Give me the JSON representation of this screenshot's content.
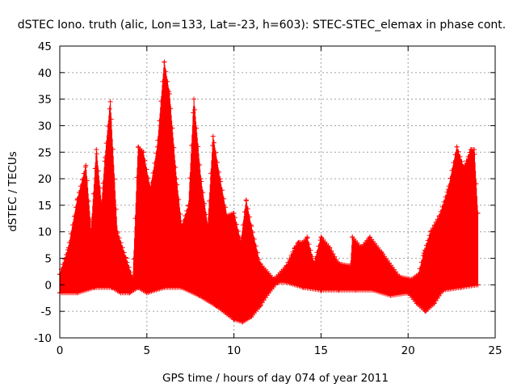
{
  "chart_data": {
    "type": "line",
    "title": "dSTEC Iono. truth (alic, Lon=133, Lat=-23, h=603): STEC-STEC_elemax in phase cont.",
    "xlabel": "GPS time / hours of day 074 of year 2011",
    "ylabel": "dSTEC  / TECUs",
    "xlim": [
      0,
      25
    ],
    "ylim": [
      -10,
      45
    ],
    "xticks": [
      0,
      5,
      10,
      15,
      20,
      25
    ],
    "yticks": [
      -10,
      -5,
      0,
      5,
      10,
      15,
      20,
      25,
      30,
      35,
      40,
      45
    ],
    "grid": true,
    "marker": "plus",
    "color": "#ff0000",
    "upper_envelope": [
      [
        0.0,
        2.0
      ],
      [
        0.5,
        7.0
      ],
      [
        1.0,
        16.0
      ],
      [
        1.5,
        22.5
      ],
      [
        1.8,
        10.0
      ],
      [
        2.1,
        25.5
      ],
      [
        2.4,
        15.0
      ],
      [
        2.6,
        24.0
      ],
      [
        2.9,
        34.5
      ],
      [
        3.3,
        10.0
      ],
      [
        3.8,
        5.0
      ],
      [
        4.2,
        1.0
      ],
      [
        4.5,
        26.0
      ],
      [
        4.8,
        25.0
      ],
      [
        5.2,
        18.0
      ],
      [
        5.6,
        26.0
      ],
      [
        6.0,
        42.0
      ],
      [
        6.3,
        36.0
      ],
      [
        6.7,
        20.0
      ],
      [
        7.0,
        11.0
      ],
      [
        7.4,
        15.0
      ],
      [
        7.7,
        35.0
      ],
      [
        8.1,
        20.0
      ],
      [
        8.5,
        11.0
      ],
      [
        8.8,
        28.0
      ],
      [
        9.2,
        20.0
      ],
      [
        9.6,
        13.0
      ],
      [
        10.0,
        13.5
      ],
      [
        10.4,
        8.0
      ],
      [
        10.7,
        16.0
      ],
      [
        11.0,
        11.0
      ],
      [
        11.5,
        4.0
      ],
      [
        12.3,
        1.0
      ],
      [
        13.0,
        3.5
      ],
      [
        13.5,
        7.0
      ],
      [
        13.7,
        8.0
      ],
      [
        14.0,
        8.0
      ],
      [
        14.2,
        9.0
      ],
      [
        14.6,
        4.0
      ],
      [
        15.0,
        9.0
      ],
      [
        15.5,
        7.0
      ],
      [
        16.0,
        4.0
      ],
      [
        16.7,
        3.5
      ],
      [
        16.8,
        9.0
      ],
      [
        17.3,
        7.0
      ],
      [
        17.8,
        9.0
      ],
      [
        18.5,
        6.0
      ],
      [
        19.5,
        1.5
      ],
      [
        20.2,
        1.0
      ],
      [
        20.6,
        2.0
      ],
      [
        20.9,
        6.0
      ],
      [
        21.3,
        10.0
      ],
      [
        21.8,
        13.0
      ],
      [
        22.3,
        18.0
      ],
      [
        22.8,
        26.0
      ],
      [
        23.2,
        22.0
      ],
      [
        23.6,
        25.5
      ],
      [
        23.8,
        25.5
      ],
      [
        24.0,
        13.5
      ]
    ],
    "lower_envelope": [
      [
        0.0,
        -1.5
      ],
      [
        1.0,
        -1.5
      ],
      [
        2.0,
        -0.5
      ],
      [
        3.0,
        -0.5
      ],
      [
        3.5,
        -1.5
      ],
      [
        4.0,
        -1.5
      ],
      [
        4.5,
        -0.5
      ],
      [
        5.0,
        -1.5
      ],
      [
        6.0,
        -0.5
      ],
      [
        7.0,
        -0.5
      ],
      [
        8.0,
        -2.0
      ],
      [
        9.0,
        -4.0
      ],
      [
        10.0,
        -6.5
      ],
      [
        10.5,
        -7.0
      ],
      [
        11.0,
        -6.0
      ],
      [
        11.5,
        -4.0
      ],
      [
        12.0,
        -1.5
      ],
      [
        12.5,
        0.5
      ],
      [
        13.0,
        0.5
      ],
      [
        14.0,
        -0.5
      ],
      [
        15.0,
        -1.0
      ],
      [
        16.0,
        -1.0
      ],
      [
        17.0,
        -1.0
      ],
      [
        18.0,
        -1.0
      ],
      [
        19.0,
        -2.0
      ],
      [
        20.0,
        -1.5
      ],
      [
        20.5,
        -3.5
      ],
      [
        21.0,
        -5.0
      ],
      [
        21.5,
        -3.5
      ],
      [
        22.0,
        -1.0
      ],
      [
        23.0,
        -0.5
      ],
      [
        24.0,
        0.0
      ]
    ]
  }
}
